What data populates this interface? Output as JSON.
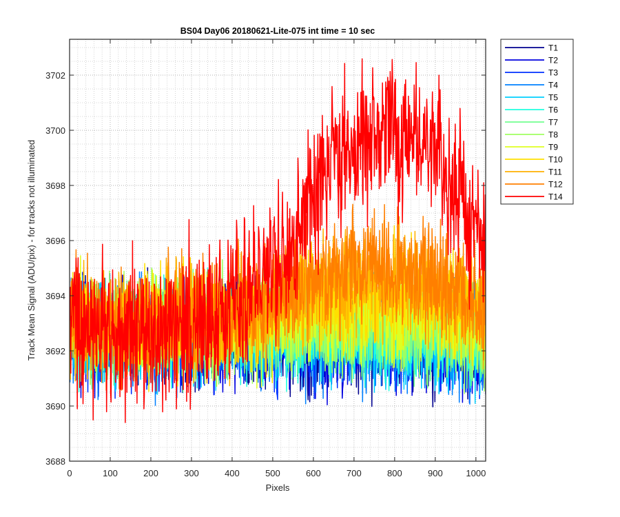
{
  "figure": {
    "title": "BS04 Day06 20180621-Lite-075 int time = 10 sec",
    "xlabel": "Pixels",
    "ylabel": "Track Mean Signal (ADU/pix) - for tracks not illuminated"
  },
  "chart_data": {
    "type": "line",
    "title": "BS04 Day06 20180621-Lite-075 int time = 10 sec",
    "xlabel": "Pixels",
    "ylabel": "Track Mean Signal (ADU/pix) - for tracks not illuminated",
    "xlim": [
      0,
      1024
    ],
    "ylim": [
      3688,
      3703.3
    ],
    "x_ticks": [
      "0",
      "100",
      "200",
      "300",
      "400",
      "500",
      "600",
      "700",
      "800",
      "900",
      "1000"
    ],
    "y_ticks": [
      "3688",
      "3690",
      "3692",
      "3694",
      "3696",
      "3698",
      "3700",
      "3702"
    ],
    "grid": "major and minor, dotted",
    "legend_position": "outside right, top",
    "x_sampling": {
      "start": 0,
      "end": 1024,
      "step": 64
    },
    "series": [
      {
        "name": "T1",
        "color": "#00008f",
        "mean": [
          3692.9,
          3692.7,
          3692.6,
          3692.5,
          3692.6,
          3692.6,
          3692.7,
          3692.7,
          3692.5,
          3692.4,
          3692.5,
          3692.4,
          3692.5,
          3692.6,
          3692.5,
          3692.3,
          3692.2
        ],
        "spread": 1.7
      },
      {
        "name": "T2",
        "color": "#0000df",
        "mean": [
          3692.9,
          3692.6,
          3692.6,
          3692.5,
          3692.5,
          3692.6,
          3692.6,
          3692.6,
          3692.5,
          3692.4,
          3692.4,
          3692.5,
          3692.5,
          3692.5,
          3692.4,
          3692.3,
          3692.2
        ],
        "spread": 1.6
      },
      {
        "name": "T3",
        "color": "#0030ff",
        "mean": [
          3692.9,
          3692.6,
          3692.6,
          3692.5,
          3692.6,
          3692.6,
          3692.6,
          3692.6,
          3692.5,
          3692.5,
          3692.5,
          3692.5,
          3692.5,
          3692.5,
          3692.4,
          3692.3,
          3692.2
        ],
        "spread": 1.6
      },
      {
        "name": "T4",
        "color": "#0080ff",
        "mean": [
          3692.9,
          3692.6,
          3692.6,
          3692.6,
          3692.6,
          3692.6,
          3692.6,
          3692.6,
          3692.6,
          3692.5,
          3692.5,
          3692.5,
          3692.6,
          3692.5,
          3692.5,
          3692.3,
          3692.2
        ],
        "spread": 1.6
      },
      {
        "name": "T5",
        "color": "#00cfff",
        "mean": [
          3693.0,
          3692.7,
          3692.6,
          3692.6,
          3692.6,
          3692.6,
          3692.7,
          3692.7,
          3692.6,
          3692.6,
          3692.6,
          3692.6,
          3692.6,
          3692.6,
          3692.5,
          3692.4,
          3692.3
        ],
        "spread": 1.5
      },
      {
        "name": "T6",
        "color": "#20ffdf",
        "mean": [
          3693.0,
          3692.7,
          3692.7,
          3692.6,
          3692.7,
          3692.7,
          3692.7,
          3692.7,
          3692.7,
          3692.7,
          3692.7,
          3692.7,
          3692.7,
          3692.7,
          3692.6,
          3692.5,
          3692.3
        ],
        "spread": 1.5
      },
      {
        "name": "T7",
        "color": "#70ff8f",
        "mean": [
          3693.0,
          3692.8,
          3692.7,
          3692.7,
          3692.8,
          3692.8,
          3692.8,
          3692.8,
          3692.8,
          3692.8,
          3692.8,
          3692.8,
          3692.8,
          3692.8,
          3692.7,
          3692.6,
          3692.4
        ],
        "spread": 1.5
      },
      {
        "name": "T8",
        "color": "#9fff60",
        "mean": [
          3693.1,
          3692.8,
          3692.8,
          3692.8,
          3692.9,
          3692.9,
          3692.9,
          3692.9,
          3693.0,
          3693.0,
          3693.0,
          3693.0,
          3693.0,
          3693.0,
          3692.9,
          3692.7,
          3692.5
        ],
        "spread": 1.5
      },
      {
        "name": "T9",
        "color": "#dfff20",
        "mean": [
          3693.1,
          3692.9,
          3692.9,
          3692.9,
          3693.0,
          3693.0,
          3693.0,
          3693.1,
          3693.2,
          3693.3,
          3693.4,
          3693.4,
          3693.4,
          3693.4,
          3693.3,
          3693.1,
          3692.9
        ],
        "spread": 1.5
      },
      {
        "name": "T10",
        "color": "#ffe000",
        "mean": [
          3693.1,
          3692.9,
          3693.0,
          3693.0,
          3693.1,
          3693.1,
          3693.2,
          3693.3,
          3693.5,
          3693.7,
          3693.8,
          3693.9,
          3693.9,
          3693.9,
          3693.8,
          3693.6,
          3693.3
        ],
        "spread": 1.6
      },
      {
        "name": "T11",
        "color": "#ffb000",
        "mean": [
          3693.1,
          3693.0,
          3693.0,
          3693.0,
          3693.1,
          3693.2,
          3693.3,
          3693.5,
          3693.8,
          3694.1,
          3694.3,
          3694.5,
          3694.6,
          3694.5,
          3694.3,
          3694.0,
          3693.6
        ],
        "spread": 1.7
      },
      {
        "name": "T12",
        "color": "#ff7f00",
        "mean": [
          3693.2,
          3693.0,
          3693.0,
          3693.1,
          3693.2,
          3693.2,
          3693.4,
          3693.6,
          3694.0,
          3694.4,
          3694.7,
          3694.9,
          3695.0,
          3694.9,
          3694.6,
          3694.2,
          3693.8
        ],
        "spread": 1.7
      },
      {
        "name": "T14",
        "color": "#ff0000",
        "mean": [
          3693.0,
          3692.7,
          3692.6,
          3692.7,
          3692.9,
          3693.1,
          3693.5,
          3694.2,
          3695.3,
          3696.9,
          3698.3,
          3699.5,
          3700.0,
          3700.1,
          3699.3,
          3697.6,
          3695.5
        ],
        "spread": 2.2
      }
    ]
  }
}
